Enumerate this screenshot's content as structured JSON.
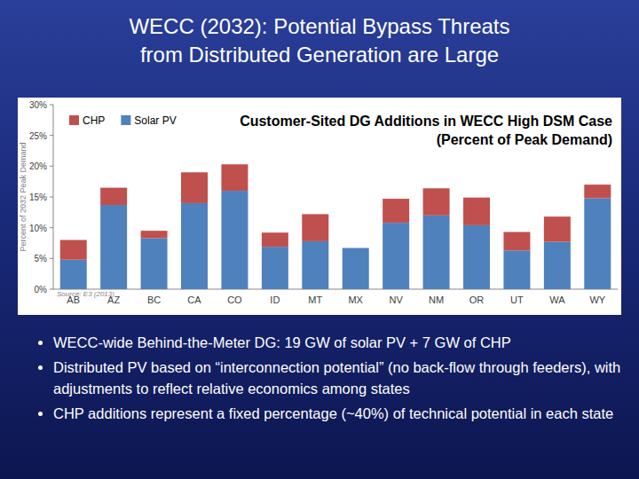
{
  "slide": {
    "title_lines": [
      "WECC (2032): Potential Bypass Threats",
      "from Distributed Generation are Large"
    ],
    "bullets": [
      "WECC-wide Behind-the-Meter DG: 19 GW of solar PV + 7 GW of CHP",
      "Distributed PV based on “interconnection potential” (no back-flow through feeders), with adjustments to reflect relative economics among states",
      "CHP additions represent a fixed percentage (~40%) of technical potential in each state"
    ]
  },
  "chart_data": {
    "type": "bar",
    "stacked": true,
    "title": "Customer-Sited DG Additions in WECC High DSM Case",
    "subtitle": "(Percent of Peak Demand)",
    "y_label": "Percent of 2032 Peak Demand",
    "source": "Source: E3 (2013)",
    "categories": [
      "AB",
      "AZ",
      "BC",
      "CA",
      "CO",
      "ID",
      "MT",
      "MX",
      "NV",
      "NM",
      "OR",
      "UT",
      "WA",
      "WY"
    ],
    "series": [
      {
        "name": "CHP",
        "color": "#c0504d",
        "values": [
          3.2,
          2.8,
          1.2,
          5.0,
          4.3,
          2.3,
          4.4,
          0,
          3.9,
          4.4,
          4.5,
          3.0,
          4.1,
          2.2
        ]
      },
      {
        "name": "Solar PV",
        "color": "#4f81bd",
        "values": [
          4.8,
          13.7,
          8.3,
          14.0,
          16.0,
          6.9,
          7.8,
          6.7,
          10.8,
          12.0,
          10.4,
          6.3,
          7.7,
          14.8
        ]
      }
    ],
    "ylim": [
      0,
      30
    ],
    "yticks": [
      {
        "value": 0,
        "label": "0%"
      },
      {
        "value": 5,
        "label": "5%"
      },
      {
        "value": 10,
        "label": "10%"
      },
      {
        "value": 15,
        "label": "15%"
      },
      {
        "value": 20,
        "label": "20%"
      },
      {
        "value": 25,
        "label": "25%"
      },
      {
        "value": 30,
        "label": "30%"
      }
    ],
    "grid": false,
    "legend": "top-left"
  }
}
